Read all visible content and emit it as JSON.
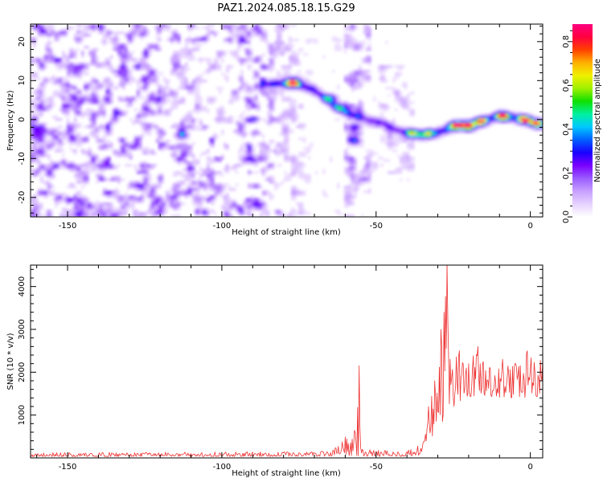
{
  "figure": {
    "title": "PAZ1.2024.085.18.15.G29"
  },
  "chart_data": [
    {
      "type": "heatmap",
      "xlabel": "Height of straight line (km)",
      "ylabel": "Frequency (Hz)",
      "xlim": [
        -162,
        4
      ],
      "ylim": [
        -25,
        24.5
      ],
      "xticks": [
        -150,
        -100,
        -50,
        0
      ],
      "yticks": [
        -20,
        -10,
        0,
        10,
        20
      ],
      "colormap": "rainbow",
      "colorbar": {
        "label": "Normalized spectral amplitude",
        "range": [
          0,
          0.88
        ],
        "ticks": [
          0.0,
          0.2,
          0.4,
          0.6,
          0.8
        ],
        "colors": [
          "#ffffff",
          "#e6d2ff",
          "#c8a0ff",
          "#9a5cff",
          "#7a00ff",
          "#1a00ff",
          "#0060ff",
          "#00c8ff",
          "#00f0a0",
          "#10e000",
          "#a0f000",
          "#f0f000",
          "#ffb000",
          "#ff4000",
          "#ff0040",
          "#ff0080"
        ]
      },
      "ridge": [
        {
          "x": -86,
          "y": 9.0
        },
        {
          "x": -80,
          "y": 9.4
        },
        {
          "x": -75,
          "y": 9.0
        },
        {
          "x": -70,
          "y": 7.5
        },
        {
          "x": -66,
          "y": 5.0
        },
        {
          "x": -62,
          "y": 3.0
        },
        {
          "x": -58,
          "y": 1.2
        },
        {
          "x": -54,
          "y": 0.2
        },
        {
          "x": -48,
          "y": -1.0
        },
        {
          "x": -44,
          "y": -2.5
        },
        {
          "x": -40,
          "y": -3.5
        },
        {
          "x": -35,
          "y": -4.0
        },
        {
          "x": -31,
          "y": -3.6
        },
        {
          "x": -27,
          "y": -2.5
        },
        {
          "x": -23,
          "y": -1.5
        },
        {
          "x": -18,
          "y": -1.0
        },
        {
          "x": -14,
          "y": 0.0
        },
        {
          "x": -10,
          "y": 1.0
        },
        {
          "x": -6,
          "y": 0.6
        },
        {
          "x": -2,
          "y": 0.0
        },
        {
          "x": 2,
          "y": -1.0
        },
        {
          "x": 4,
          "y": -1.3
        }
      ],
      "hotspots": [
        {
          "x": -77,
          "y": 9.4,
          "value": 0.75
        },
        {
          "x": -65,
          "y": 5.5,
          "value": 0.35
        },
        {
          "x": -62,
          "y": 3.0,
          "value": 0.3
        },
        {
          "x": -57,
          "y": -2.0,
          "value": 0.3
        },
        {
          "x": -57,
          "y": -5.5,
          "value": 0.3
        },
        {
          "x": -38,
          "y": -3.5,
          "value": 0.35
        },
        {
          "x": -33,
          "y": -3.5,
          "value": 0.35
        },
        {
          "x": -24,
          "y": -1.5,
          "value": 0.72
        },
        {
          "x": -20,
          "y": -1.8,
          "value": 0.7
        },
        {
          "x": -16,
          "y": -0.5,
          "value": 0.6
        },
        {
          "x": -9,
          "y": 0.8,
          "value": 0.72
        },
        {
          "x": -2,
          "y": 0.0,
          "value": 0.7
        },
        {
          "x": 2,
          "y": -1.0,
          "value": 0.5
        },
        {
          "x": -113,
          "y": -4.0,
          "value": 0.3
        }
      ]
    },
    {
      "type": "line",
      "xlabel": "Height of straight line (km)",
      "ylabel": "SNR (10 * v/v)",
      "xlim": [
        -162,
        4
      ],
      "ylim": [
        0,
        4500
      ],
      "xticks": [
        -150,
        -100,
        -50,
        0
      ],
      "yticks": [
        1000,
        2000,
        3000,
        4000
      ],
      "color": "#ee3333",
      "x_step_km": 0.25,
      "envelope": [
        {
          "x": -162,
          "y": 120
        },
        {
          "x": -70,
          "y": 150
        },
        {
          "x": -64,
          "y": 250
        },
        {
          "x": -60,
          "y": 550
        },
        {
          "x": -57,
          "y": 650
        },
        {
          "x": -55.5,
          "y": 2150
        },
        {
          "x": -54.5,
          "y": 200
        },
        {
          "x": -40,
          "y": 160
        },
        {
          "x": -37,
          "y": 300
        },
        {
          "x": -35,
          "y": 250
        },
        {
          "x": -33,
          "y": 1200
        },
        {
          "x": -31,
          "y": 1800
        },
        {
          "x": -29,
          "y": 3000
        },
        {
          "x": -28,
          "y": 3400
        },
        {
          "x": -27,
          "y": 4550
        },
        {
          "x": -26,
          "y": 2300
        },
        {
          "x": -23,
          "y": 2500
        },
        {
          "x": -20,
          "y": 2200
        },
        {
          "x": -17,
          "y": 2600
        },
        {
          "x": -13,
          "y": 2100
        },
        {
          "x": -9,
          "y": 2300
        },
        {
          "x": -5,
          "y": 2200
        },
        {
          "x": -1,
          "y": 2500
        },
        {
          "x": 4,
          "y": 2300
        }
      ],
      "floor": [
        {
          "x": -162,
          "y": 30
        },
        {
          "x": -36,
          "y": 40
        },
        {
          "x": -33,
          "y": 400
        },
        {
          "x": -27,
          "y": 800
        },
        {
          "x": -22,
          "y": 1400
        },
        {
          "x": -14,
          "y": 1400
        },
        {
          "x": 4,
          "y": 1400
        }
      ]
    }
  ]
}
